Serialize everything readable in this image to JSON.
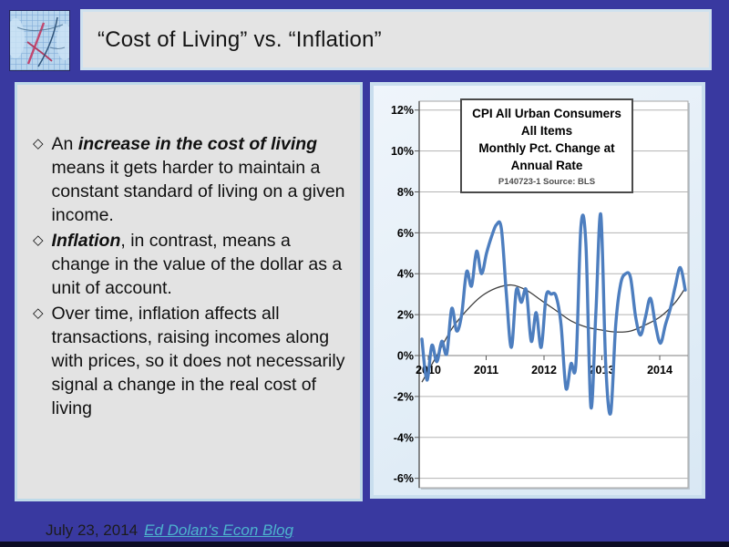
{
  "slide": {
    "title": "“Cost of Living” vs. “Inflation”",
    "footer": {
      "date": "July 23, 2014",
      "link": "Ed Dolan's Econ Blog"
    },
    "colors": {
      "background": "#3939a0",
      "panel_gray": "#e3e3e3",
      "panel_border_blue": "#bedae9",
      "link": "#4db3cd",
      "series_blue": "#4d7ebf",
      "trend_black": "#3f3f3f"
    }
  },
  "textbox": {
    "bullet_glyph": "◇",
    "bullets": [
      {
        "segments": [
          {
            "t": "An ",
            "bi": false
          },
          {
            "t": "increase in the cost of living",
            "bi": true
          },
          {
            "t": " means it gets harder to maintain a constant standard of living on a given income.",
            "bi": false
          }
        ]
      },
      {
        "segments": [
          {
            "t": "Inflation",
            "bi": true
          },
          {
            "t": ", in contrast, means a change in the value of the dollar as a unit of account.",
            "bi": false
          }
        ]
      },
      {
        "segments": [
          {
            "t": "Over time, inflation affects all transactions, raising incomes along with prices, so it does not necessarily signal a change in the real cost of living",
            "bi": false
          }
        ]
      }
    ]
  },
  "chart_data": {
    "type": "line",
    "title_lines": [
      "CPI All Urban Consumers",
      "All Items",
      "Monthly Pct. Change at",
      "Annual Rate"
    ],
    "subtitle": "P140723-1 Source: BLS",
    "x_start": "2010-01",
    "x_end": "2014-06",
    "xtick_labels": [
      "2010",
      "2011",
      "2012",
      "2013",
      "2014"
    ],
    "ytick_values": [
      12,
      10,
      8,
      6,
      4,
      2,
      0,
      -2,
      -4,
      -6
    ],
    "ytick_labels": [
      "12%",
      "10%",
      "8%",
      "6%",
      "4%",
      "2%",
      "0%",
      "-2%",
      "-4%",
      "-6%"
    ],
    "ylim": [
      -6,
      12
    ],
    "grid": true,
    "legend": "none",
    "series": [
      {
        "name": "CPI monthly pct. change at annual rate",
        "color": "#4d7ebf",
        "values": [
          0.8,
          -1.2,
          0.5,
          -0.3,
          0.7,
          0.1,
          2.3,
          1.2,
          2.0,
          4.1,
          3.4,
          5.1,
          4.0,
          5.0,
          5.8,
          6.4,
          6.2,
          3.0,
          0.4,
          3.2,
          2.6,
          3.2,
          0.7,
          2.1,
          0.4,
          2.9,
          3.0,
          2.9,
          1.5,
          -1.6,
          -0.4,
          -0.4,
          6.3,
          5.5,
          -2.5,
          2.0,
          6.9,
          -0.5,
          -2.8,
          1.5,
          3.5,
          4.0,
          3.8,
          1.9,
          1.0,
          1.9,
          2.8,
          1.5,
          0.6,
          1.5,
          2.3,
          3.4,
          4.3,
          3.2
        ]
      },
      {
        "name": "Smoothed trend",
        "color": "#3f3f3f",
        "points": [
          [
            0,
            -1.3
          ],
          [
            3,
            0.0
          ],
          [
            6,
            1.3
          ],
          [
            9,
            2.2
          ],
          [
            12,
            2.9
          ],
          [
            15,
            3.3
          ],
          [
            18,
            3.45
          ],
          [
            21,
            3.2
          ],
          [
            24,
            2.7
          ],
          [
            27,
            2.2
          ],
          [
            30,
            1.7
          ],
          [
            33,
            1.4
          ],
          [
            36,
            1.25
          ],
          [
            39,
            1.15
          ],
          [
            42,
            1.2
          ],
          [
            45,
            1.5
          ],
          [
            48,
            1.9
          ],
          [
            51,
            2.6
          ],
          [
            53,
            3.3
          ]
        ]
      }
    ]
  }
}
